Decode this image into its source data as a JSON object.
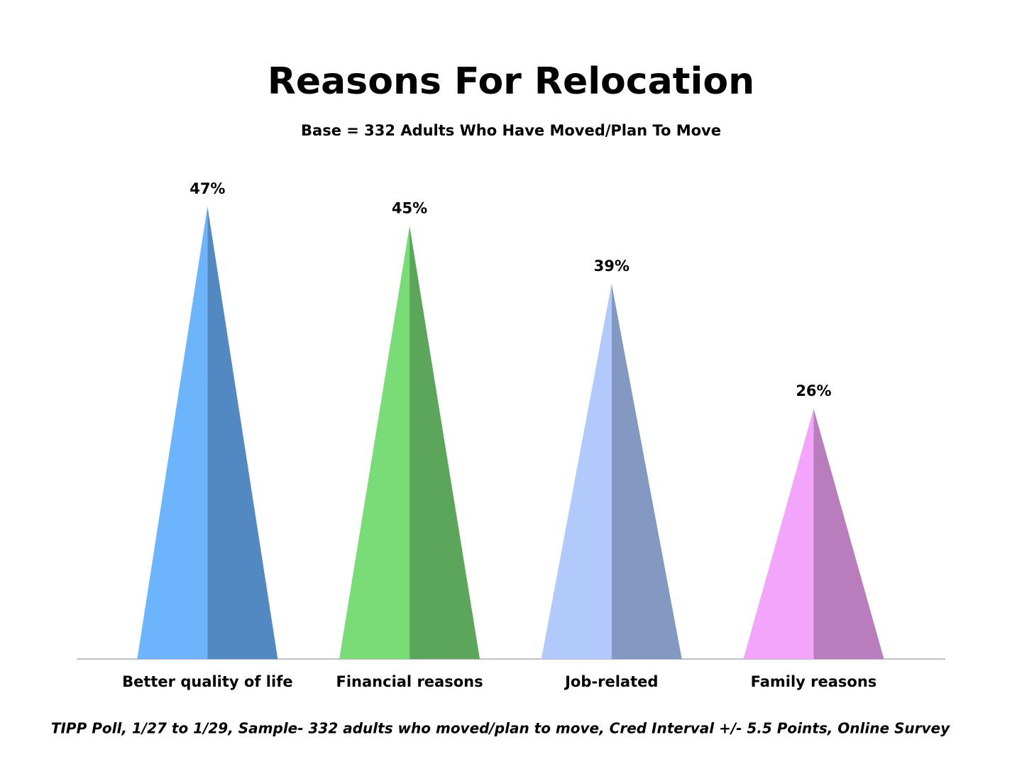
{
  "chart_data": {
    "type": "cone",
    "title": "Reasons For Relocation",
    "subtitle": "Base = 332 Adults Who Have Moved/Plan To Move",
    "footnote": "TIPP Poll, 1/27 to 1/29, Sample- 332 adults who moved/plan to move, Cred Interval +/- 5.5 Points, Online Survey",
    "categories": [
      "Better quality of life",
      "Financial reasons",
      "Job-related",
      "Family reasons"
    ],
    "values": [
      47,
      45,
      39,
      26
    ],
    "value_labels": [
      "47%",
      "45%",
      "39%",
      "26%"
    ],
    "colors": [
      [
        "#6cb4fc",
        "#5289c2"
      ],
      [
        "#79dc77",
        "#5ca65b"
      ],
      [
        "#b1c9fb",
        "#8499c2"
      ],
      [
        "#f3a5fb",
        "#b97dbd"
      ]
    ]
  }
}
